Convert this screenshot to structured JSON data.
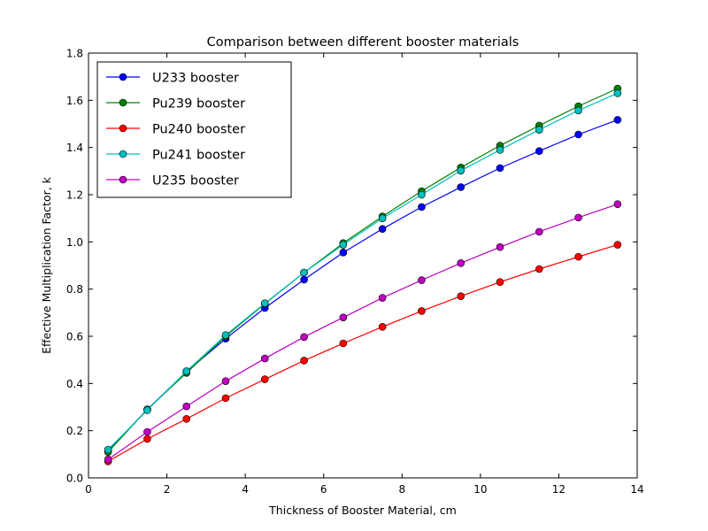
{
  "chart_data": {
    "type": "line",
    "title": "Comparison between different booster materials",
    "xlabel": "Thickness of Booster Material, cm",
    "ylabel": "Effective Multiplication Factor, k",
    "xlim": [
      0,
      14
    ],
    "ylim": [
      0,
      1.8
    ],
    "xticks": [
      0,
      2,
      4,
      6,
      8,
      10,
      12,
      14
    ],
    "xtick_labels": [
      "0",
      "2",
      "4",
      "6",
      "8",
      "10",
      "12",
      "14"
    ],
    "yticks": [
      0,
      0.2,
      0.4,
      0.6,
      0.8,
      1.0,
      1.2,
      1.4,
      1.6,
      1.8
    ],
    "ytick_labels": [
      "0.0",
      "0.2",
      "0.4",
      "0.6",
      "0.8",
      "1.0",
      "1.2",
      "1.4",
      "1.6",
      "1.8"
    ],
    "grid": false,
    "legend_position": "top-left",
    "x": [
      0.5,
      1.5,
      2.5,
      3.5,
      4.5,
      5.5,
      6.5,
      7.5,
      8.5,
      9.5,
      10.5,
      11.5,
      12.5,
      13.5
    ],
    "series": [
      {
        "name": "U233 booster",
        "color": "#0000ff",
        "values": [
          0.115,
          0.29,
          0.45,
          0.59,
          0.72,
          0.84,
          0.955,
          1.055,
          1.148,
          1.232,
          1.313,
          1.385,
          1.455,
          1.517
        ]
      },
      {
        "name": "Pu239 booster",
        "color": "#008000",
        "values": [
          0.11,
          0.29,
          0.445,
          0.6,
          0.738,
          0.87,
          0.995,
          1.108,
          1.215,
          1.315,
          1.408,
          1.493,
          1.575,
          1.65
        ]
      },
      {
        "name": "Pu240 booster",
        "color": "#ff0000",
        "values": [
          0.07,
          0.165,
          0.25,
          0.338,
          0.418,
          0.497,
          0.57,
          0.64,
          0.707,
          0.77,
          0.83,
          0.885,
          0.937,
          0.988
        ]
      },
      {
        "name": "Pu241 booster",
        "color": "#00bfbf",
        "values": [
          0.12,
          0.287,
          0.452,
          0.605,
          0.74,
          0.87,
          0.988,
          1.1,
          1.2,
          1.302,
          1.39,
          1.475,
          1.557,
          1.63
        ]
      },
      {
        "name": "U235 booster",
        "color": "#bf00bf",
        "values": [
          0.078,
          0.195,
          0.303,
          0.41,
          0.506,
          0.597,
          0.68,
          0.763,
          0.838,
          0.91,
          0.978,
          1.043,
          1.103,
          1.16
        ]
      }
    ]
  }
}
